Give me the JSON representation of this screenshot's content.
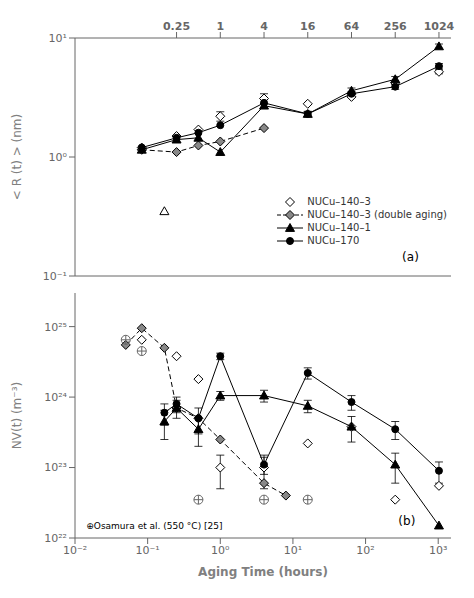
{
  "chart_data": [
    {
      "type": "line",
      "ylabel": "< R (t) > (nm)",
      "log": true,
      "grid": false,
      "legend": "lower right",
      "xlim": [
        0.01,
        1500
      ],
      "ylim": [
        0.1,
        10
      ],
      "xticks": [
        0.25,
        1,
        4,
        16,
        64,
        256,
        1024
      ],
      "yticks": [
        {
          "value": 0.1,
          "label": "10⁻¹"
        },
        {
          "value": 1,
          "label": "10⁰"
        },
        {
          "value": 10,
          "label": "10¹"
        }
      ],
      "annotations": [
        "(a)"
      ],
      "series": [
        {
          "name": "NUCu–140–3",
          "color": "#ffffff",
          "marker": "diamond",
          "line_style": "none",
          "x": [
            0.083,
            0.25,
            0.5,
            1.0,
            4.0,
            16.0,
            64.0,
            256.0,
            1024.0
          ],
          "values": [
            1.2,
            1.5,
            1.7,
            2.2,
            3.1,
            2.8,
            3.2,
            4.2,
            5.2
          ],
          "yerr": [
            0,
            0,
            0,
            0.2,
            0.3,
            0,
            0,
            0.15,
            0.2
          ]
        },
        {
          "name": "NUCu–140–3 (double aging)",
          "color": "#888888",
          "marker": "diamond",
          "line_style": "dashed",
          "x": [
            0.083,
            0.25,
            0.5,
            1.0,
            4.0
          ],
          "values": [
            1.15,
            1.1,
            1.25,
            1.35,
            1.75
          ]
        },
        {
          "color": "#ffffff",
          "marker": "triangle",
          "line_style": "none",
          "x": [
            0.17
          ],
          "values": [
            0.35
          ]
        },
        {
          "name": "NUCu–140–1",
          "color": "#000000",
          "marker": "triangle",
          "line_style": "solid",
          "x": [
            0.083,
            0.25,
            0.5,
            1.0,
            4.0,
            16.0,
            64.0,
            256.0,
            1024.0
          ],
          "values": [
            1.15,
            1.4,
            1.45,
            1.1,
            2.7,
            2.3,
            3.6,
            4.5,
            8.5
          ],
          "yerr": [
            0,
            0,
            0,
            0,
            0.1,
            0.12,
            0.2,
            0.25,
            0.4
          ]
        },
        {
          "name": "NUCu–170",
          "color": "#000000",
          "marker": "circle",
          "line_style": "solid",
          "x": [
            0.083,
            0.25,
            0.5,
            1.0,
            4.0,
            16.0,
            64.0,
            256.0,
            1024.0
          ],
          "values": [
            1.2,
            1.45,
            1.6,
            1.85,
            2.85,
            2.3,
            3.4,
            3.9,
            5.8
          ],
          "yerr": [
            0,
            0,
            0,
            0,
            0,
            0.1,
            0.15,
            0.2,
            0.3
          ]
        }
      ]
    },
    {
      "type": "line",
      "xlabel": "Aging Time (hours)",
      "ylabel": "NV(t) (m⁻³)",
      "log": true,
      "grid": false,
      "xlim": [
        0.01,
        1500
      ],
      "ylim": [
        1e+22,
        3e+25
      ],
      "xticks": [
        {
          "value": 0.01,
          "label": "10⁻²"
        },
        {
          "value": 0.1,
          "label": "10⁻¹"
        },
        {
          "value": 1,
          "label": "10⁰"
        },
        {
          "value": 10,
          "label": "10¹"
        },
        {
          "value": 100,
          "label": "10²"
        },
        {
          "value": 1000,
          "label": "10³"
        }
      ],
      "yticks": [
        {
          "value": 1e+22,
          "label": "10²²"
        },
        {
          "value": 1e+23,
          "label": "10²³"
        },
        {
          "value": 1e+24,
          "label": "10²⁴"
        },
        {
          "value": 1e+25,
          "label": "10²⁵"
        }
      ],
      "annotations": [
        "(b)",
        "⊕Osamura et al. (550 °C) [25]"
      ],
      "series": [
        {
          "color": "#888888",
          "marker": "diamond",
          "line_style": "dashed",
          "x": [
            0.05,
            0.083,
            0.17,
            0.25,
            0.5,
            1.0,
            4.0,
            8.0
          ],
          "values": [
            5.5e+24,
            9.5e+24,
            5e+24,
            7e+23,
            5e+23,
            2.5e+23,
            6e+22,
            4e+22
          ]
        },
        {
          "color": "#ffffff",
          "marker": "diamond",
          "line_style": "none",
          "x": [
            0.083,
            0.25,
            0.5,
            1.0,
            4.0,
            16.0,
            64.0,
            256.0,
            1024.0
          ],
          "values": [
            6.5e+24,
            3.8e+24,
            1.8e+24,
            1e+23,
            1e+23,
            2.2e+23,
            3.8e+23,
            3.5e+22,
            5.5e+22
          ],
          "yerr": [
            0,
            0,
            0,
            5e+22,
            5e+22,
            0,
            0,
            0,
            0
          ]
        },
        {
          "color": "#000000",
          "marker": "triangle",
          "line_style": "solid",
          "x": [
            0.17,
            0.25,
            0.5,
            1.0,
            4.0,
            16.0,
            64.0,
            256.0,
            1024.0
          ],
          "values": [
            4.5e+23,
            7e+23,
            3.5e+23,
            1.05e+24,
            1.05e+24,
            7.5e+23,
            3.8e+23,
            1.1e+23,
            1.5e+22
          ],
          "yerr": [
            2e+23,
            2e+23,
            1.5e+23,
            1.5e+23,
            2e+23,
            1.5e+23,
            1.5e+23,
            5e+22,
            0
          ]
        },
        {
          "color": "#000000",
          "marker": "circle",
          "line_style": "solid",
          "x": [
            0.17,
            0.25,
            0.5,
            1.0,
            4.0,
            16.0,
            64.0,
            256.0,
            1024.0
          ],
          "values": [
            6e+23,
            8e+23,
            5e+23,
            3.8e+24,
            1.1e+23,
            2.2e+24,
            8.5e+23,
            3.5e+23,
            9e+22
          ],
          "yerr": [
            2e+23,
            2e+23,
            2e+23,
            4e+23,
            3e+22,
            4e+23,
            2e+23,
            1e+23,
            3e+22
          ]
        },
        {
          "color": "#666666",
          "marker": "circled_plus",
          "line_style": "none",
          "x": [
            0.05,
            0.083,
            0.5,
            4.0,
            16.0
          ],
          "values": [
            6.5e+24,
            4.5e+24,
            3.5e+22,
            3.5e+22,
            3.5e+22
          ]
        }
      ]
    }
  ]
}
